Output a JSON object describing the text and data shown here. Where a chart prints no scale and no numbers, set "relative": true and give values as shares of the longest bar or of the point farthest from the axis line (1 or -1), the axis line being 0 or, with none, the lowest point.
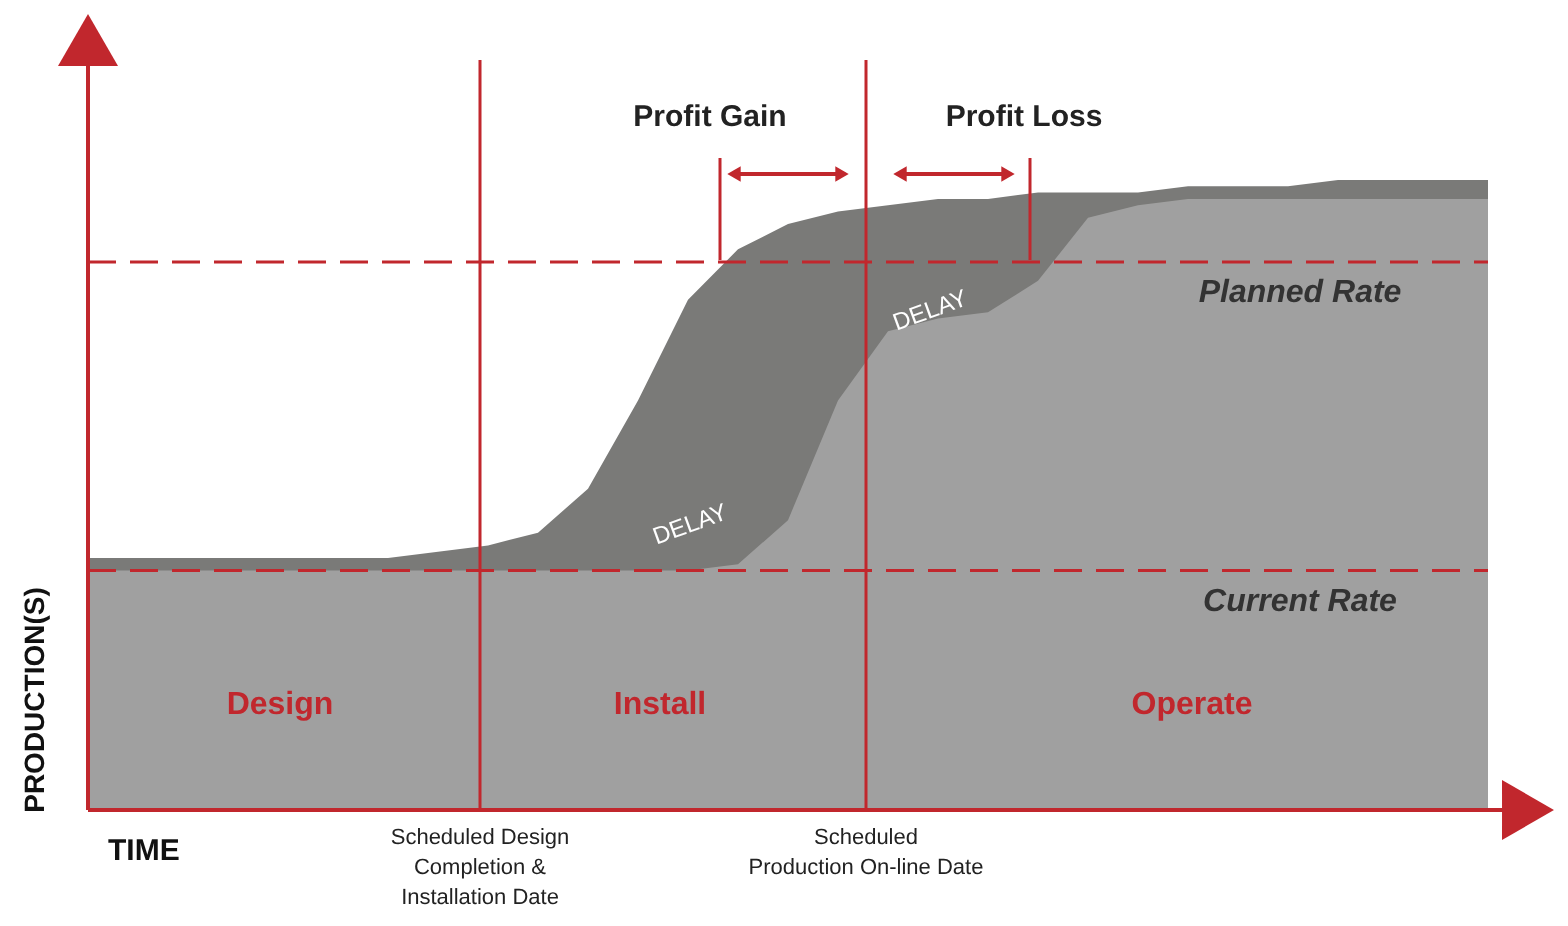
{
  "chart_data": {
    "type": "area",
    "relative": true,
    "xlabel": "TIME",
    "ylabel": "PRODUCTION(S)",
    "categories": [
      null,
      null,
      null,
      null,
      null,
      null,
      null,
      null,
      null,
      null,
      null,
      null,
      null,
      null,
      null,
      null,
      null,
      null,
      null,
      null,
      null,
      null,
      null,
      null,
      null,
      null,
      null,
      null,
      null
    ],
    "series": [
      {
        "color": "#7a7a78",
        "values": [
          0.4,
          0.4,
          0.4,
          0.4,
          0.4,
          0.4,
          0.4,
          0.41,
          0.42,
          0.44,
          0.51,
          0.65,
          0.81,
          0.89,
          0.93,
          0.95,
          0.96,
          0.97,
          0.97,
          0.98,
          0.98,
          0.98,
          0.99,
          0.99,
          0.99,
          1.0,
          1.0,
          1.0,
          1.0
        ]
      },
      {
        "color": "#a0a0a0",
        "values": [
          0.38,
          0.38,
          0.38,
          0.38,
          0.38,
          0.38,
          0.38,
          0.38,
          0.38,
          0.38,
          0.38,
          0.38,
          0.38,
          0.39,
          0.46,
          0.65,
          0.76,
          0.78,
          0.79,
          0.84,
          0.94,
          0.96,
          0.97,
          0.97,
          0.97,
          0.97,
          0.97,
          0.97,
          0.97
        ]
      }
    ],
    "ref_lines": [
      {
        "axis": "y",
        "value": 0.87,
        "label": "Planned Rate",
        "color": "#c1272d",
        "line_style": "dashed"
      },
      {
        "axis": "y",
        "value": 0.38,
        "label": "Current Rate",
        "color": "#c1272d",
        "line_style": "dashed"
      }
    ],
    "annotations": [
      "Scheduled Design\nCompletion &\nInstallation Date",
      "Scheduled\nProduction On-line Date",
      "Profit Gain",
      "Profit Loss",
      "DELAY",
      "DELAY",
      "Design",
      "Install",
      "Operate"
    ]
  }
}
